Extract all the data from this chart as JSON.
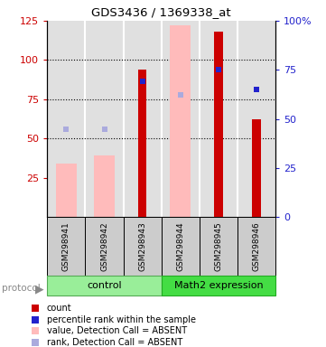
{
  "title": "GDS3436 / 1369338_at",
  "samples": [
    "GSM298941",
    "GSM298942",
    "GSM298943",
    "GSM298944",
    "GSM298945",
    "GSM298946"
  ],
  "ylim_left": [
    0,
    125
  ],
  "ylim_right": [
    0,
    100
  ],
  "yticks_left": [
    25,
    50,
    75,
    100,
    125
  ],
  "yticks_right": [
    0,
    25,
    50,
    75,
    100
  ],
  "ytick_labels_left": [
    "25",
    "50",
    "75",
    "100",
    "125"
  ],
  "ytick_labels_right": [
    "0",
    "25",
    "50",
    "75",
    "100%"
  ],
  "count_values": [
    null,
    null,
    94,
    null,
    118,
    62
  ],
  "rank_values": [
    null,
    null,
    69,
    null,
    75,
    65
  ],
  "absent_value_bars": [
    34,
    39,
    null,
    122,
    null,
    null
  ],
  "absent_rank_markers": [
    56,
    56,
    null,
    78,
    null,
    null
  ],
  "color_red": "#cc0000",
  "color_blue": "#2222cc",
  "color_pink": "#ffbbbb",
  "color_lightblue": "#aaaadd",
  "color_gray_bg": "#cccccc",
  "group_control_color": "#99ee99",
  "group_math2_color": "#44dd44",
  "dotted_yticks": [
    50,
    75,
    100
  ],
  "pink_bar_width": 0.55,
  "red_bar_width": 0.22,
  "marker_size": 5
}
